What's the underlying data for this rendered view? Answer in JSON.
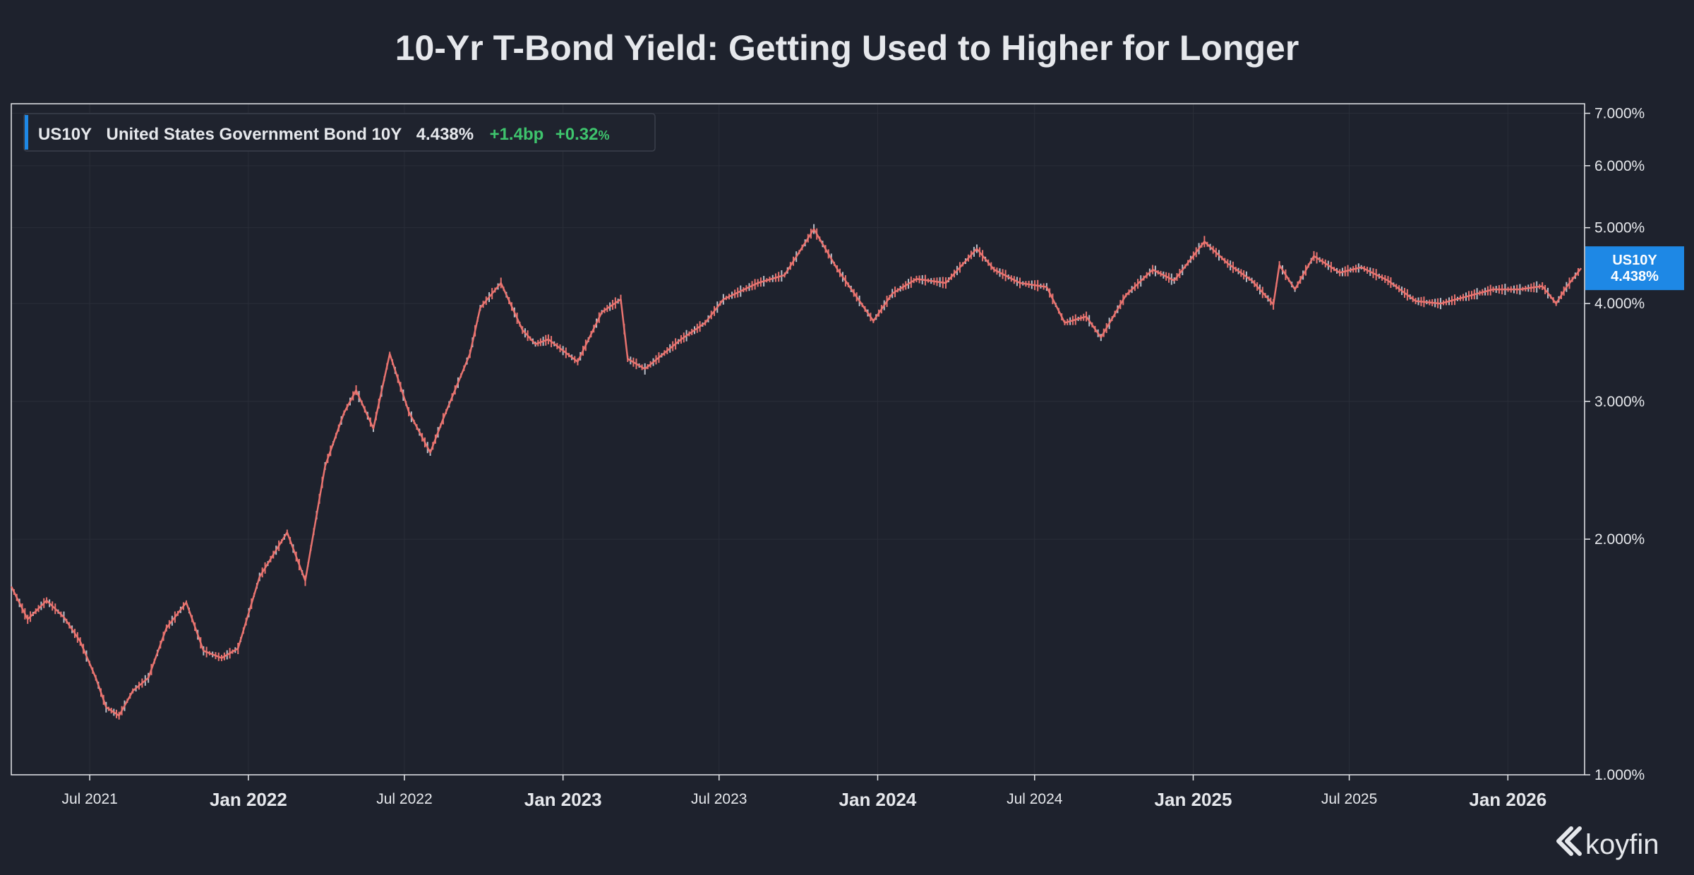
{
  "chart_data": {
    "type": "line",
    "title": "10-Yr T-Bond Yield: Getting Used to Higher for Longer",
    "y_scale": "log",
    "ylim": [
      1.0,
      7.2
    ],
    "xlim": [
      "2021-04-01",
      "2026-03-31"
    ],
    "grid": true,
    "y_ticks": [
      "7.000%",
      "6.000%",
      "5.000%",
      "4.000%",
      "3.000%",
      "2.000%",
      "1.000%"
    ],
    "y_tick_values": [
      7,
      6,
      5,
      4,
      3,
      2,
      1
    ],
    "x_ticks": [
      {
        "label": "Jul 2021",
        "date": "2021-07-01",
        "major": false
      },
      {
        "label": "Jan 2022",
        "date": "2022-01-01",
        "major": true
      },
      {
        "label": "Jul 2022",
        "date": "2022-07-01",
        "major": false
      },
      {
        "label": "Jan 2023",
        "date": "2023-01-01",
        "major": true
      },
      {
        "label": "Jul 2023",
        "date": "2023-07-01",
        "major": false
      },
      {
        "label": "Jan 2024",
        "date": "2024-01-01",
        "major": true
      },
      {
        "label": "Jul 2024",
        "date": "2024-07-01",
        "major": false
      },
      {
        "label": "Jan 2025",
        "date": "2025-01-01",
        "major": true
      },
      {
        "label": "Jul 2025",
        "date": "2025-07-01",
        "major": false
      },
      {
        "label": "Jan 2026",
        "date": "2026-01-01",
        "major": true
      }
    ],
    "series": [
      {
        "name": "US10Y",
        "color": "#e8736f",
        "x": [
          "2021-04-01",
          "2021-04-20",
          "2021-05-12",
          "2021-06-01",
          "2021-06-20",
          "2021-07-08",
          "2021-07-20",
          "2021-08-04",
          "2021-08-20",
          "2021-09-07",
          "2021-09-28",
          "2021-10-21",
          "2021-11-10",
          "2021-12-01",
          "2021-12-20",
          "2022-01-14",
          "2022-02-15",
          "2022-03-08",
          "2022-03-31",
          "2022-04-22",
          "2022-05-06",
          "2022-05-26",
          "2022-06-14",
          "2022-07-06",
          "2022-07-31",
          "2022-08-15",
          "2022-09-15",
          "2022-09-27",
          "2022-10-21",
          "2022-11-15",
          "2022-11-30",
          "2022-12-15",
          "2023-01-18",
          "2023-02-15",
          "2023-03-09",
          "2023-03-17",
          "2023-04-06",
          "2023-05-18",
          "2023-06-15",
          "2023-07-06",
          "2023-08-15",
          "2023-09-15",
          "2023-10-19",
          "2023-11-15",
          "2023-12-27",
          "2024-01-18",
          "2024-02-15",
          "2024-03-20",
          "2024-04-25",
          "2024-05-15",
          "2024-06-14",
          "2024-07-15",
          "2024-08-05",
          "2024-08-30",
          "2024-09-16",
          "2024-10-15",
          "2024-11-15",
          "2024-12-10",
          "2025-01-14",
          "2025-02-10",
          "2025-03-10",
          "2025-04-04",
          "2025-04-11",
          "2025-04-29",
          "2025-05-21",
          "2025-06-20",
          "2025-07-15",
          "2025-08-15",
          "2025-09-16",
          "2025-10-15",
          "2025-11-20",
          "2025-12-15",
          "2026-01-15",
          "2026-02-10",
          "2026-02-26",
          "2026-03-10",
          "2026-03-27"
        ],
        "values": [
          1.74,
          1.58,
          1.67,
          1.59,
          1.48,
          1.33,
          1.22,
          1.19,
          1.28,
          1.33,
          1.54,
          1.66,
          1.44,
          1.41,
          1.45,
          1.79,
          2.04,
          1.77,
          2.48,
          2.9,
          3.1,
          2.77,
          3.45,
          2.91,
          2.58,
          2.85,
          3.45,
          3.95,
          4.25,
          3.7,
          3.55,
          3.6,
          3.37,
          3.9,
          4.05,
          3.4,
          3.3,
          3.6,
          3.78,
          4.05,
          4.25,
          4.35,
          4.98,
          4.43,
          3.8,
          4.12,
          4.3,
          4.25,
          4.7,
          4.42,
          4.25,
          4.2,
          3.78,
          3.85,
          3.62,
          4.1,
          4.42,
          4.28,
          4.8,
          4.5,
          4.28,
          3.99,
          4.48,
          4.17,
          4.6,
          4.38,
          4.45,
          4.28,
          4.03,
          4.0,
          4.1,
          4.17,
          4.17,
          4.21,
          4.0,
          4.2,
          4.438
        ]
      }
    ],
    "legend": {
      "position": "top-left",
      "symbol": "US10Y",
      "name": "United States Government Bond 10Y",
      "value": "4.438%",
      "change_bp": "+1.4bp",
      "change_pct": "+0.32",
      "pct_sign": "%"
    },
    "last_value_tag": {
      "symbol": "US10Y",
      "value": "4.438%",
      "numeric": 4.438,
      "color": "#1e88e5"
    },
    "brand": "koyfin"
  }
}
